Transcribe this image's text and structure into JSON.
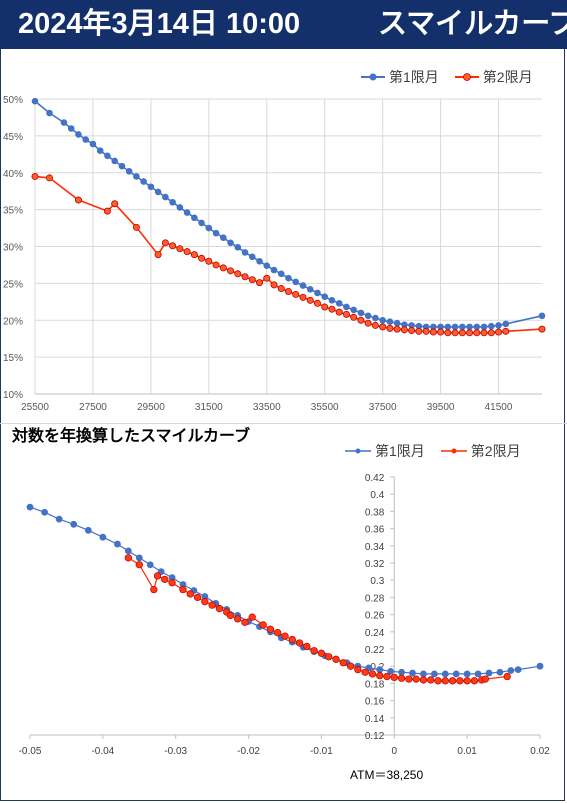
{
  "header": {
    "date_time": "2024年3月14日 10:00",
    "title": "スマイルカーブ",
    "bg_color": "#13306b"
  },
  "legend": {
    "series1": "第1限月",
    "series2": "第2限月",
    "color1": "#4472c4",
    "color2": "#ff2d00"
  },
  "chart_data": [
    {
      "type": "line",
      "title": "",
      "xlabel": "",
      "ylabel": "",
      "xlim": [
        25500,
        43000
      ],
      "ylim": [
        0.1,
        0.5
      ],
      "x_ticks": [
        "25500",
        "27500",
        "29500",
        "31500",
        "33500",
        "35500",
        "37500",
        "39500",
        "41500"
      ],
      "y_ticks": [
        "10%",
        "15%",
        "20%",
        "25%",
        "30%",
        "35%",
        "40%",
        "45%",
        "50%"
      ],
      "grid": true,
      "legend_position": "top-right",
      "series": [
        {
          "name": "第1限月",
          "x": [
            25500,
            26000,
            26500,
            26750,
            27000,
            27250,
            27500,
            27750,
            28000,
            28250,
            28500,
            28750,
            29000,
            29250,
            29500,
            29750,
            30000,
            30250,
            30500,
            30750,
            31000,
            31250,
            31500,
            31750,
            32000,
            32250,
            32500,
            32750,
            33000,
            33250,
            33500,
            33750,
            34000,
            34250,
            34500,
            34750,
            35000,
            35250,
            35500,
            35750,
            36000,
            36250,
            36500,
            36750,
            37000,
            37250,
            37500,
            37750,
            38000,
            38250,
            38500,
            38750,
            39000,
            39250,
            39500,
            39750,
            40000,
            40250,
            40500,
            40750,
            41000,
            41250,
            41500,
            41750,
            43000
          ],
          "y": [
            0.497,
            0.481,
            0.468,
            0.46,
            0.452,
            0.445,
            0.439,
            0.43,
            0.423,
            0.416,
            0.409,
            0.402,
            0.395,
            0.388,
            0.381,
            0.374,
            0.367,
            0.36,
            0.353,
            0.346,
            0.339,
            0.332,
            0.325,
            0.318,
            0.312,
            0.305,
            0.299,
            0.292,
            0.286,
            0.28,
            0.274,
            0.268,
            0.263,
            0.257,
            0.252,
            0.247,
            0.242,
            0.237,
            0.232,
            0.227,
            0.223,
            0.218,
            0.214,
            0.21,
            0.206,
            0.203,
            0.2,
            0.198,
            0.196,
            0.194,
            0.193,
            0.192,
            0.191,
            0.191,
            0.191,
            0.191,
            0.191,
            0.191,
            0.191,
            0.191,
            0.191,
            0.192,
            0.193,
            0.195,
            0.206
          ]
        },
        {
          "name": "第2限月",
          "x": [
            25500,
            26000,
            27000,
            28000,
            28250,
            29000,
            29750,
            30000,
            30250,
            30500,
            30750,
            31000,
            31250,
            31500,
            31750,
            32000,
            32250,
            32500,
            32750,
            33000,
            33250,
            33500,
            33750,
            34000,
            34250,
            34500,
            34750,
            35000,
            35250,
            35500,
            35750,
            36000,
            36250,
            36500,
            36750,
            37000,
            37250,
            37500,
            37750,
            38000,
            38250,
            38500,
            38750,
            39000,
            39250,
            39500,
            39750,
            40000,
            40250,
            40500,
            40750,
            41000,
            41250,
            41500,
            41750,
            43000
          ],
          "y": [
            0.395,
            0.393,
            0.363,
            0.348,
            0.358,
            0.326,
            0.289,
            0.305,
            0.301,
            0.297,
            0.293,
            0.289,
            0.284,
            0.28,
            0.275,
            0.271,
            0.267,
            0.263,
            0.259,
            0.255,
            0.251,
            0.257,
            0.248,
            0.243,
            0.239,
            0.235,
            0.231,
            0.227,
            0.223,
            0.218,
            0.215,
            0.211,
            0.208,
            0.204,
            0.2,
            0.196,
            0.193,
            0.191,
            0.189,
            0.188,
            0.187,
            0.186,
            0.185,
            0.185,
            0.184,
            0.184,
            0.183,
            0.183,
            0.183,
            0.183,
            0.183,
            0.183,
            0.183,
            0.184,
            0.185,
            0.188
          ]
        }
      ]
    },
    {
      "type": "scatter",
      "title": "対数を年換算したスマイルカーブ",
      "xlabel": "",
      "ylabel": "",
      "xlim": [
        -0.05,
        0.02
      ],
      "ylim": [
        0.12,
        0.42
      ],
      "x_ticks": [
        "-0.05",
        "-0.04",
        "-0.03",
        "-0.02",
        "-0.01",
        "0",
        "0.01",
        "0.02"
      ],
      "y_ticks": [
        "0.12",
        "0.14",
        "0.16",
        "0.18",
        "0.2",
        "0.22",
        "0.24",
        "0.26",
        "0.28",
        "0.3",
        "0.32",
        "0.34",
        "0.36",
        "0.38",
        "0.4",
        "0.42"
      ],
      "grid": false,
      "legend_position": "top-right",
      "annotation": "ATM＝38,250",
      "series": [
        {
          "name": "第1限月",
          "x": [
            -0.05,
            -0.048,
            -0.046,
            -0.044,
            -0.042,
            -0.04,
            -0.038,
            -0.0365,
            -0.035,
            -0.0335,
            -0.032,
            -0.0305,
            -0.029,
            -0.0275,
            -0.026,
            -0.0245,
            -0.023,
            -0.0215,
            -0.02,
            -0.0185,
            -0.017,
            -0.0155,
            -0.014,
            -0.0125,
            -0.011,
            -0.0095,
            -0.008,
            -0.0065,
            -0.005,
            -0.0035,
            -0.002,
            -0.0005,
            0.001,
            0.0025,
            0.004,
            0.0055,
            0.007,
            0.0085,
            0.01,
            0.0115,
            0.013,
            0.0145,
            0.016,
            0.017,
            0.02
          ],
          "y": [
            0.385,
            0.379,
            0.371,
            0.365,
            0.358,
            0.35,
            0.342,
            0.334,
            0.326,
            0.318,
            0.31,
            0.303,
            0.295,
            0.288,
            0.281,
            0.273,
            0.266,
            0.259,
            0.252,
            0.246,
            0.24,
            0.233,
            0.228,
            0.222,
            0.217,
            0.212,
            0.208,
            0.204,
            0.2,
            0.198,
            0.196,
            0.194,
            0.193,
            0.192,
            0.191,
            0.191,
            0.191,
            0.191,
            0.191,
            0.191,
            0.192,
            0.193,
            0.195,
            0.196,
            0.2
          ]
        },
        {
          "name": "第2限月",
          "x": [
            -0.0365,
            -0.035,
            -0.033,
            -0.0325,
            -0.0315,
            -0.0305,
            -0.029,
            -0.028,
            -0.027,
            -0.026,
            -0.025,
            -0.024,
            -0.023,
            -0.0225,
            -0.0215,
            -0.0205,
            -0.0195,
            -0.018,
            -0.017,
            -0.016,
            -0.015,
            -0.014,
            -0.013,
            -0.012,
            -0.011,
            -0.01,
            -0.009,
            -0.008,
            -0.007,
            -0.006,
            -0.005,
            -0.004,
            -0.003,
            -0.002,
            -0.001,
            0.0,
            0.001,
            0.002,
            0.003,
            0.004,
            0.005,
            0.006,
            0.007,
            0.008,
            0.009,
            0.01,
            0.011,
            0.012,
            0.0125,
            0.0155
          ],
          "y": [
            0.326,
            0.318,
            0.289,
            0.305,
            0.301,
            0.297,
            0.289,
            0.284,
            0.28,
            0.275,
            0.271,
            0.267,
            0.263,
            0.259,
            0.255,
            0.251,
            0.257,
            0.248,
            0.243,
            0.239,
            0.235,
            0.231,
            0.227,
            0.223,
            0.218,
            0.215,
            0.211,
            0.208,
            0.204,
            0.2,
            0.196,
            0.193,
            0.191,
            0.189,
            0.188,
            0.187,
            0.186,
            0.185,
            0.185,
            0.184,
            0.184,
            0.183,
            0.183,
            0.183,
            0.183,
            0.183,
            0.183,
            0.184,
            0.185,
            0.188
          ]
        }
      ]
    }
  ]
}
